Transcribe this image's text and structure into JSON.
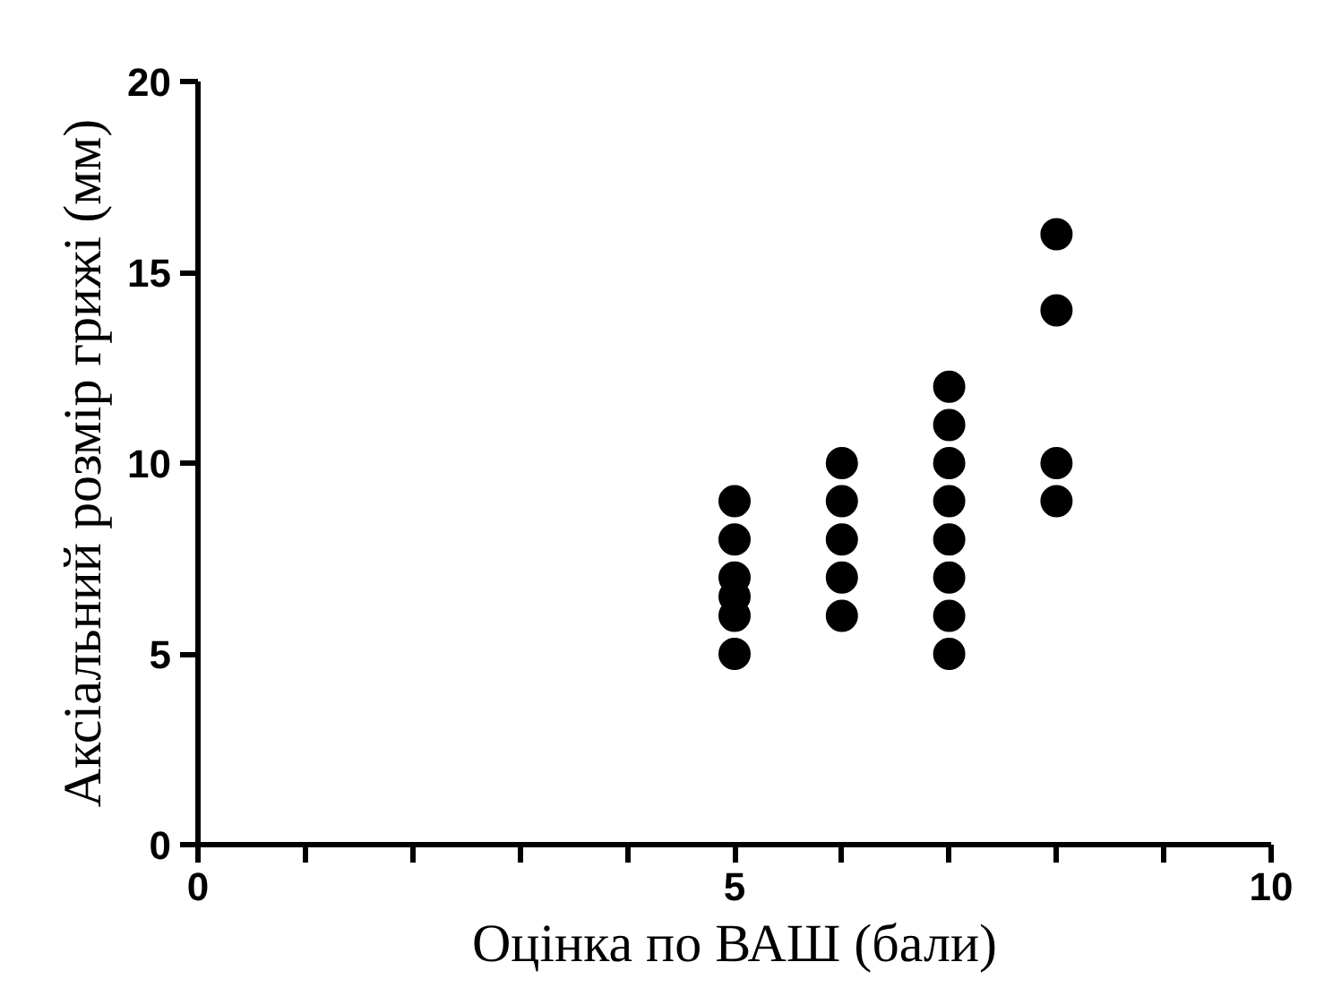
{
  "chart_data": {
    "type": "scatter",
    "xlabel": "Оцінка по ВАШ (бали)",
    "ylabel": "Аксіальний розмір грижі (мм)",
    "x": [
      5,
      5,
      5,
      5,
      5,
      5,
      6,
      6,
      6,
      6,
      6,
      7,
      7,
      7,
      7,
      7,
      7,
      7,
      7,
      8,
      8,
      8,
      8
    ],
    "values": [
      9,
      8,
      7,
      6.5,
      6,
      5,
      10,
      9,
      8,
      7,
      6,
      12,
      11,
      10,
      9,
      8,
      7,
      6,
      5,
      16,
      14,
      10,
      9
    ],
    "color": "#000000",
    "marker": "circle",
    "grid": false,
    "xlim": [
      0,
      10
    ],
    "ylim": [
      0,
      20
    ],
    "xticks": [
      0,
      {
        "value": 1,
        "label": null
      },
      {
        "value": 2,
        "label": null
      },
      {
        "value": 3,
        "label": null
      },
      {
        "value": 4,
        "label": null
      },
      5,
      {
        "value": 6,
        "label": null
      },
      {
        "value": 7,
        "label": null
      },
      {
        "value": 8,
        "label": null
      },
      {
        "value": 9,
        "label": null
      },
      10
    ],
    "yticks": [
      0,
      5,
      10,
      15,
      20
    ]
  }
}
